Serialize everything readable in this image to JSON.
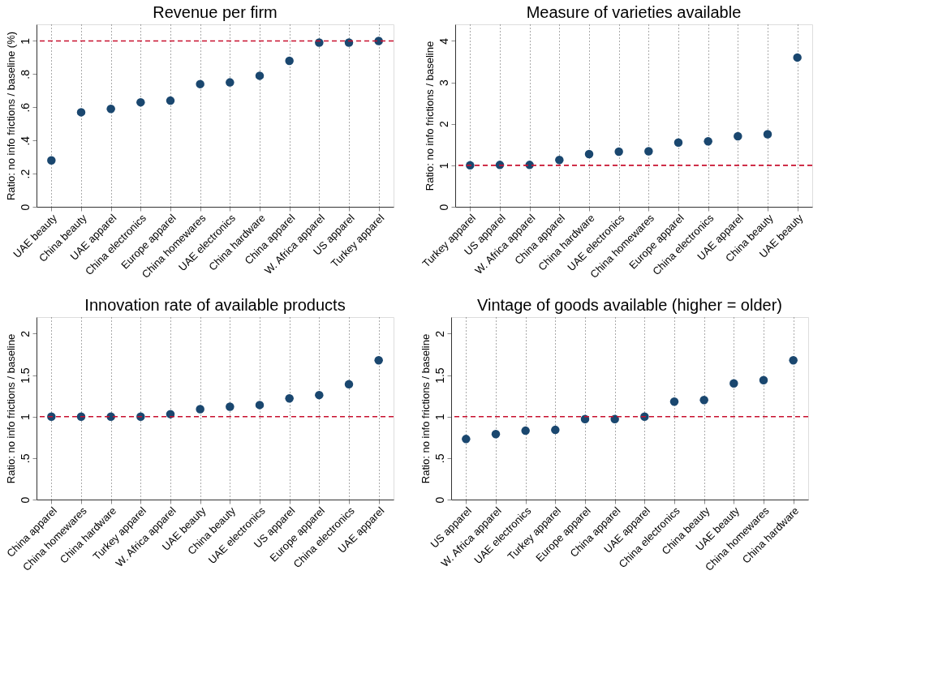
{
  "chart_data": [
    {
      "type": "scatter",
      "title": "Revenue per firm",
      "ylabel": "Ratio: no info frictions / baseline (%)",
      "categories": [
        "UAE beauty",
        "China beauty",
        "UAE apparel",
        "China electronics",
        "Europe apparel",
        "China homewares",
        "UAE electronics",
        "China hardware",
        "China apparel",
        "W. Africa apparel",
        "US apparel",
        "Turkey apparel"
      ],
      "series": [
        {
          "color": "#1a476f",
          "values": [
            0.28,
            0.57,
            0.59,
            0.63,
            0.64,
            0.74,
            0.75,
            0.79,
            0.88,
            0.99,
            0.99,
            1.0
          ]
        }
      ],
      "ylim": [
        0,
        1.1
      ],
      "yticks": [
        0,
        {
          "value": 0.2,
          "label": ".2"
        },
        {
          "value": 0.4,
          "label": ".4"
        },
        {
          "value": 0.6,
          "label": ".6"
        },
        {
          "value": 0.8,
          "label": ".8"
        },
        1
      ],
      "ref_lines": [
        {
          "axis": "y",
          "value": 1,
          "color": "#c8102e",
          "line_style": "dashed"
        }
      ],
      "grid": "x",
      "marker": "circle",
      "legend": false
    },
    {
      "type": "scatter",
      "title": "Measure of varieties available",
      "ylabel": "Ratio: no info frictions / baseline",
      "categories": [
        "Turkey apparel",
        "US apparel",
        "W. Africa apparel",
        "China apparel",
        "China hardware",
        "UAE electronics",
        "China homewares",
        "Europe apparel",
        "China electronics",
        "UAE apparel",
        "China beauty",
        "UAE beauty"
      ],
      "series": [
        {
          "color": "#1a476f",
          "values": [
            1.0,
            1.01,
            1.01,
            1.13,
            1.27,
            1.33,
            1.34,
            1.55,
            1.58,
            1.7,
            1.75,
            3.6
          ]
        }
      ],
      "ylim": [
        0,
        4.4
      ],
      "yticks": [
        0,
        1,
        2,
        3,
        4
      ],
      "ref_lines": [
        {
          "axis": "y",
          "value": 1,
          "color": "#c8102e",
          "line_style": "dashed"
        }
      ],
      "grid": "x",
      "marker": "circle",
      "legend": false
    },
    {
      "type": "scatter",
      "title": "Innovation rate of available products",
      "ylabel": "Ratio: no info frictions / baseline",
      "categories": [
        "China apparel",
        "China homewares",
        "China hardware",
        "Turkey apparel",
        "W. Africa apparel",
        "UAE beauty",
        "China beauty",
        "UAE electronics",
        "US apparel",
        "Europe apparel",
        "China electronics",
        "UAE apparel"
      ],
      "series": [
        {
          "color": "#1a476f",
          "values": [
            1.0,
            1.0,
            1.0,
            1.0,
            1.03,
            1.09,
            1.12,
            1.14,
            1.22,
            1.26,
            1.39,
            1.68
          ]
        }
      ],
      "ylim": [
        0,
        2.2
      ],
      "yticks": [
        0,
        {
          "value": 0.5,
          "label": ".5"
        },
        1,
        1.5,
        2
      ],
      "ref_lines": [
        {
          "axis": "y",
          "value": 1,
          "color": "#c8102e",
          "line_style": "dashed"
        }
      ],
      "grid": "x",
      "marker": "circle",
      "legend": false
    },
    {
      "type": "scatter",
      "title": "Vintage of goods available (higher = older)",
      "ylabel": "Ratio: no info frictions / baseline",
      "categories": [
        "US apparel",
        "W. Africa apparel",
        "UAE electronics",
        "Turkey apparel",
        "Europe apparel",
        "China apparel",
        "UAE apparel",
        "China electronics",
        "China beauty",
        "UAE beauty",
        "China homewares",
        "China hardware"
      ],
      "series": [
        {
          "color": "#1a476f",
          "values": [
            0.73,
            0.79,
            0.83,
            0.84,
            0.97,
            0.97,
            1.0,
            1.18,
            1.2,
            1.4,
            1.44,
            1.68
          ]
        }
      ],
      "ylim": [
        0,
        2.2
      ],
      "yticks": [
        0,
        {
          "value": 0.5,
          "label": ".5"
        },
        1,
        1.5,
        2
      ],
      "ref_lines": [
        {
          "axis": "y",
          "value": 1,
          "color": "#c8102e",
          "line_style": "dashed"
        }
      ],
      "grid": "x",
      "marker": "circle",
      "legend": false
    }
  ]
}
